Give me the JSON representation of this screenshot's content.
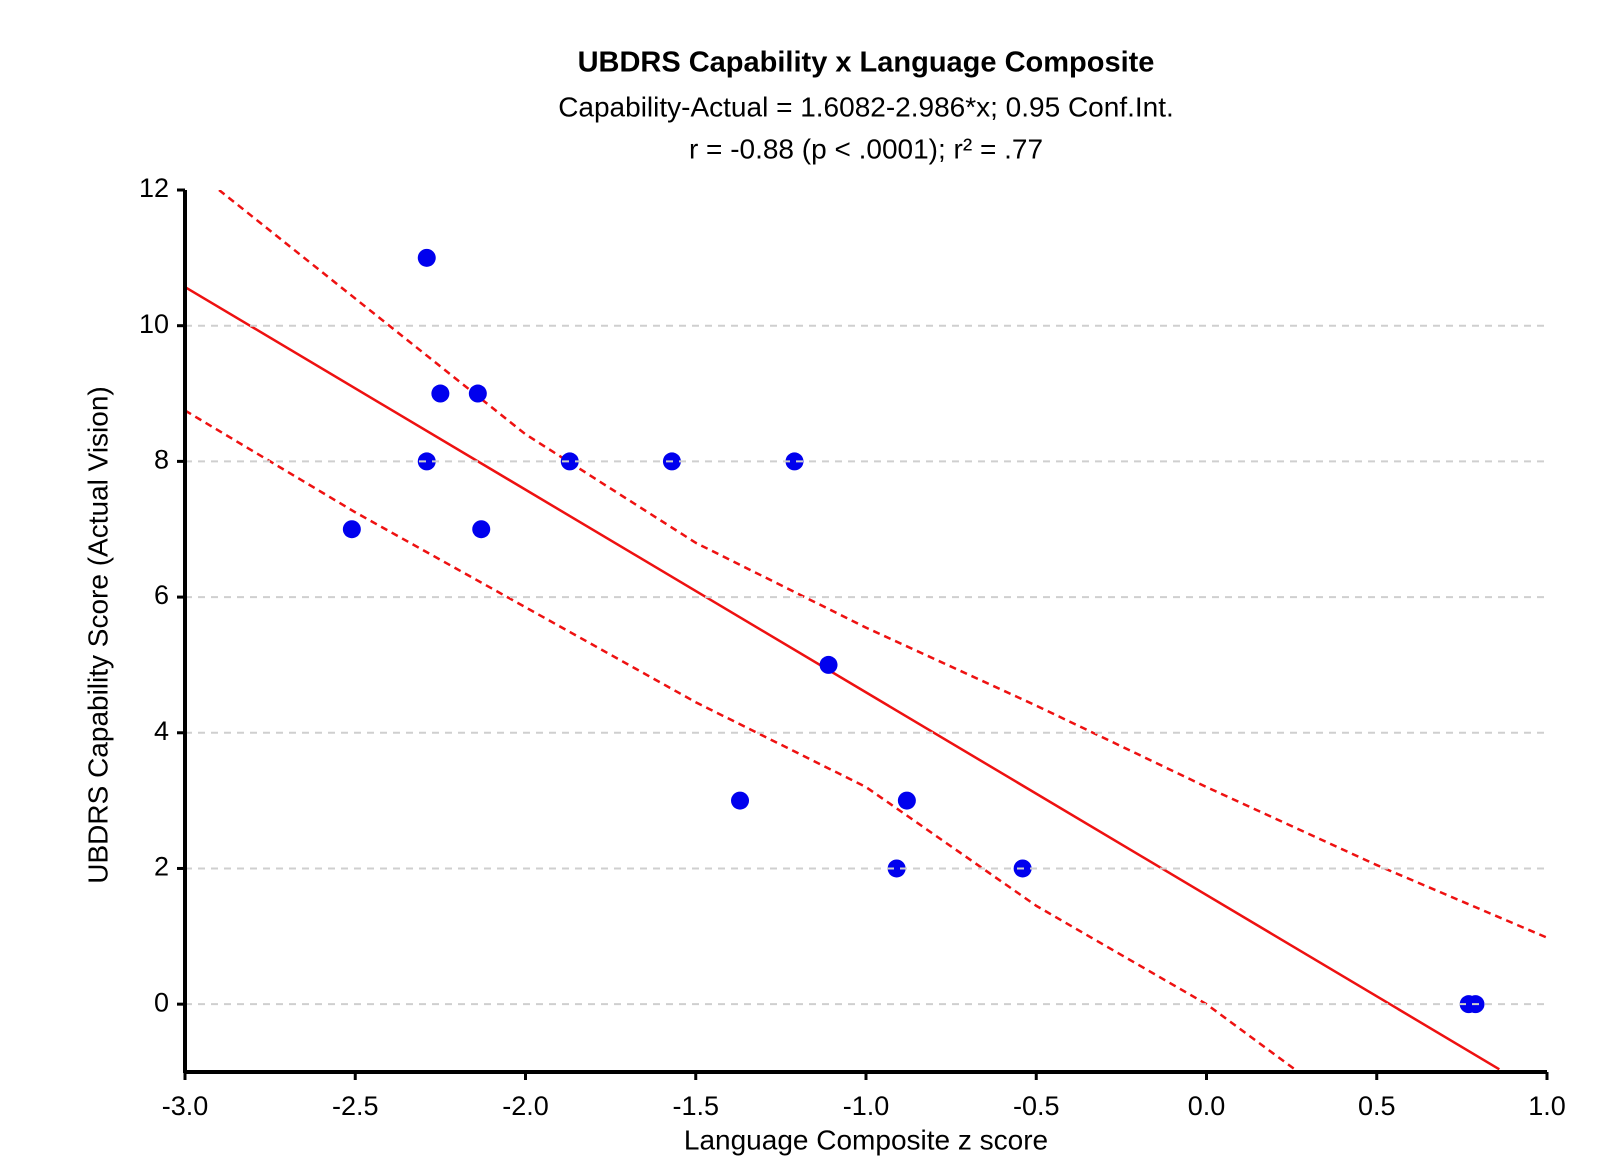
{
  "chart_data": {
    "type": "scatter",
    "title": "UBDRS Capability x Language Composite",
    "subtitle": [
      "Capability-Actual = 1.6082-2.986*x; 0.95 Conf.Int.",
      "r = -0.88 (p < .0001); r² = .77"
    ],
    "x_label": "Language Composite z score",
    "y_label": "UBDRS Capability Score (Actual Vision)",
    "x": [
      -2.51,
      -2.29,
      -2.25,
      -2.14,
      -2.29,
      -2.13,
      -1.87,
      -1.57,
      -1.21,
      -1.11,
      -1.37,
      -0.88,
      -0.91,
      -0.54,
      0.77,
      0.79
    ],
    "values": [
      7,
      11,
      9,
      9,
      8,
      7,
      8,
      8,
      8,
      5,
      3,
      3,
      2,
      2,
      0,
      0
    ],
    "color": "#0000ee",
    "lines": [
      {
        "color": "#ee1111",
        "dashed": false,
        "x": [
          -3,
          0.86
        ],
        "values": [
          10.57,
          -0.96
        ]
      },
      {
        "color": "#ee1111",
        "dashed": true,
        "x": [
          -2.9,
          -2.0,
          -1.5,
          -1.0,
          -0.5,
          0,
          0.5,
          1.0
        ],
        "values": [
          12.0,
          8.4,
          6.8,
          5.55,
          4.4,
          3.2,
          2.05,
          0.98
        ]
      },
      {
        "color": "#ee1111",
        "dashed": true,
        "x": [
          -3,
          -2.5,
          -2.0,
          -1.5,
          -1.0,
          -0.5,
          0,
          0.27
        ],
        "values": [
          8.75,
          7.25,
          5.85,
          4.45,
          3.2,
          1.45,
          0,
          -1
        ]
      }
    ],
    "xlim": [
      -3,
      1
    ],
    "xticks": [
      {
        "value": -3,
        "label": "-3.0"
      },
      {
        "value": -2.5,
        "label": "-2.5"
      },
      {
        "value": -2,
        "label": "-2.0"
      },
      {
        "value": -1.5,
        "label": "-1.5"
      },
      {
        "value": -1,
        "label": "-1.0"
      },
      {
        "value": -0.5,
        "label": "-0.5"
      },
      {
        "value": 0,
        "label": "0.0"
      },
      {
        "value": 0.5,
        "label": "0.5"
      },
      {
        "value": 1,
        "label": "1.0"
      }
    ],
    "ylim": [
      -1,
      12
    ],
    "yticks": [
      0,
      2,
      4,
      6,
      8,
      10,
      12
    ],
    "grid": true
  }
}
